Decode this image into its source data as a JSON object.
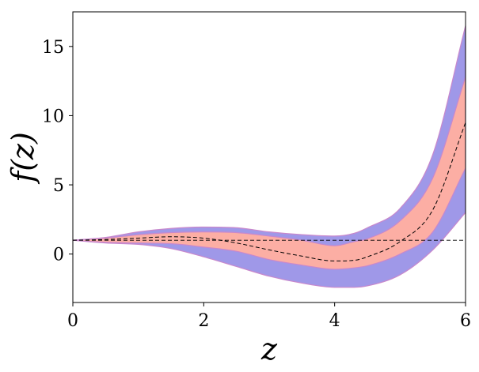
{
  "chart_data": {
    "type": "area",
    "title": "",
    "xlabel": "z",
    "ylabel": "f(z)",
    "xlim": [
      0,
      6
    ],
    "ylim": [
      -3.5,
      17.5
    ],
    "xticks": [
      0,
      2,
      4,
      6
    ],
    "yticks": [
      0,
      5,
      10,
      15
    ],
    "grid": false,
    "legend": "none",
    "x": [
      0,
      0.5,
      1,
      1.5,
      2,
      2.5,
      3,
      3.5,
      4,
      4.3,
      4.5,
      5,
      5.5,
      6
    ],
    "series": [
      {
        "role": "outer-band",
        "color": "#9f98e8",
        "edge_color": "#c888cc",
        "lower": [
          1.0,
          0.8,
          0.7,
          0.4,
          -0.2,
          -0.9,
          -1.6,
          -2.1,
          -2.4,
          -2.4,
          -2.3,
          -1.5,
          0.3,
          3.0
        ],
        "upper": [
          1.0,
          1.2,
          1.6,
          1.85,
          1.95,
          1.9,
          1.6,
          1.4,
          1.3,
          1.5,
          1.9,
          3.3,
          7.2,
          16.5
        ]
      },
      {
        "role": "inner-band",
        "color": "#fcaea4",
        "edge_color": "#c888cc",
        "lower": [
          1.0,
          0.85,
          0.8,
          0.75,
          0.5,
          0.2,
          -0.4,
          -0.8,
          -1.1,
          -1.0,
          -0.85,
          0.0,
          1.6,
          6.2
        ],
        "upper": [
          1.0,
          1.15,
          1.4,
          1.55,
          1.6,
          1.55,
          1.3,
          1.0,
          0.6,
          0.9,
          1.1,
          2.4,
          5.5,
          12.8
        ]
      },
      {
        "role": "mean",
        "color": "#000000",
        "style": "dashed",
        "values": [
          1.0,
          1.05,
          1.15,
          1.25,
          1.15,
          0.8,
          0.3,
          -0.15,
          -0.5,
          -0.45,
          -0.2,
          0.9,
          3.2,
          9.5
        ]
      }
    ],
    "reference_line": {
      "y": 1,
      "style": "dashed",
      "color": "#000000"
    }
  }
}
